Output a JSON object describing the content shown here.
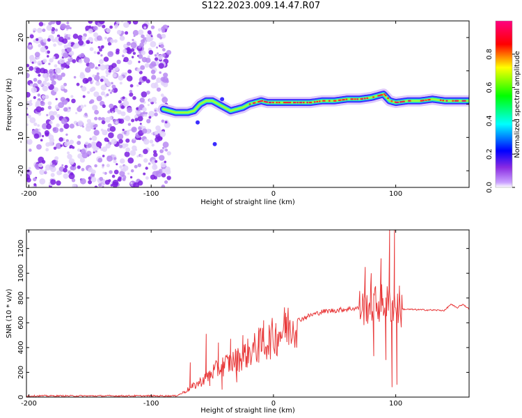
{
  "title": "S122.2023.009.14.47.R07",
  "colors": {
    "snr_line": "#e8393a",
    "scatter": "#8a2be2",
    "trace_edge": "#3b2cff",
    "trace_mid": "#19e0d6",
    "trace_core": "#d61f6b"
  },
  "chart_data": [
    {
      "type": "heatmap",
      "title": "",
      "xlabel": "Height of straight line (km)",
      "ylabel": "Frequency (Hz)",
      "xlim": [
        -202,
        160
      ],
      "ylim": [
        -25,
        25
      ],
      "x_ticks": [
        -200,
        -100,
        0,
        100
      ],
      "y_ticks": [
        20,
        10,
        0,
        -10,
        -20
      ],
      "colorbar": {
        "label": "Normalized spectral amplitude",
        "range": [
          0,
          1
        ],
        "ticks": [
          "0.0",
          "0.2",
          "0.4",
          "0.6",
          "0.8"
        ],
        "colormap": "gist_rainbow"
      },
      "noise_region_x": [
        -202,
        -85
      ],
      "ridge": {
        "x": [
          -90,
          -85,
          -80,
          -75,
          -70,
          -65,
          -60,
          -55,
          -50,
          -45,
          -40,
          -35,
          -30,
          -25,
          -20,
          -15,
          -10,
          -5,
          0,
          10,
          20,
          30,
          40,
          50,
          60,
          70,
          80,
          85,
          90,
          95,
          100,
          110,
          120,
          130,
          140,
          150,
          160
        ],
        "y": [
          -1.5,
          -2,
          -2.5,
          -2.5,
          -2.5,
          -2,
          0,
          1,
          1,
          0,
          -1,
          -2,
          -1.5,
          -1,
          0,
          0.5,
          1,
          0.5,
          0.5,
          0.5,
          0.5,
          0.5,
          1,
          1,
          1.5,
          1.5,
          2,
          2.5,
          3,
          1,
          0.5,
          1,
          1,
          1.5,
          1,
          1,
          1
        ]
      }
    },
    {
      "type": "line",
      "title": "",
      "xlabel": "Height of straight line (km)",
      "ylabel": "SNR (10 * v/v)",
      "xlim": [
        -202,
        160
      ],
      "ylim": [
        0,
        1350
      ],
      "x_ticks": [
        -200,
        -100,
        0,
        100
      ],
      "y_ticks": [
        0,
        200,
        400,
        600,
        800,
        1000,
        1200
      ],
      "envelope": {
        "x": [
          -202,
          -80,
          -75,
          -60,
          -50,
          -40,
          -30,
          -20,
          -10,
          0,
          10,
          20,
          30,
          40,
          50,
          60,
          70,
          80,
          90,
          95,
          100,
          105,
          120,
          140,
          145,
          150,
          155,
          160
        ],
        "y": [
          10,
          10,
          30,
          120,
          200,
          260,
          300,
          360,
          420,
          480,
          560,
          620,
          660,
          690,
          700,
          710,
          720,
          750,
          760,
          750,
          740,
          710,
          705,
          700,
          750,
          720,
          750,
          710
        ]
      },
      "spikes": [
        {
          "x": -68,
          "y": 280
        },
        {
          "x": -55,
          "y": 510
        },
        {
          "x": -52,
          "y": 90
        },
        {
          "x": -45,
          "y": 440
        },
        {
          "x": -42,
          "y": 60
        },
        {
          "x": -35,
          "y": 470
        },
        {
          "x": -30,
          "y": 120
        },
        {
          "x": -25,
          "y": 500
        },
        {
          "x": -12,
          "y": 560
        },
        {
          "x": -8,
          "y": 620
        },
        {
          "x": 2,
          "y": 570
        },
        {
          "x": 10,
          "y": 680
        },
        {
          "x": 75,
          "y": 1050
        },
        {
          "x": 80,
          "y": 1000
        },
        {
          "x": 82,
          "y": 330
        },
        {
          "x": 88,
          "y": 1120
        },
        {
          "x": 92,
          "y": 300
        },
        {
          "x": 95,
          "y": 1350
        },
        {
          "x": 97,
          "y": 80
        },
        {
          "x": 99,
          "y": 1350
        },
        {
          "x": 101,
          "y": 100
        },
        {
          "x": 103,
          "y": 900
        }
      ]
    }
  ]
}
